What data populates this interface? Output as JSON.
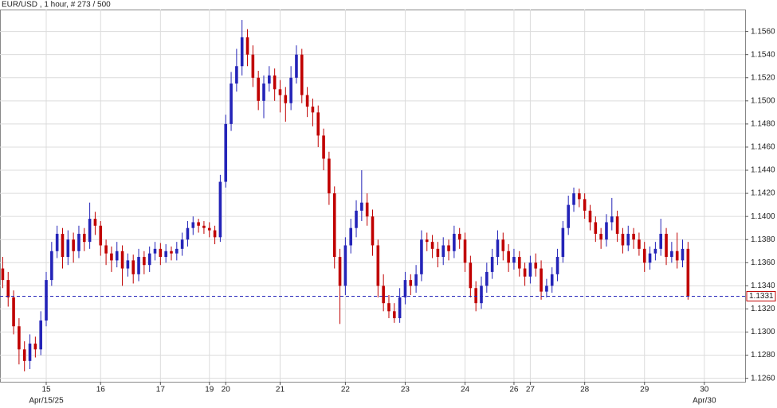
{
  "chart_data": {
    "type": "candlestick",
    "title": "EUR/USD , 1 hour, # 273 / 500",
    "categories": [
      null,
      null,
      null,
      null,
      null,
      null,
      null,
      null,
      "15",
      null,
      null,
      null,
      null,
      null,
      null,
      null,
      null,
      null,
      "16",
      null,
      null,
      null,
      null,
      null,
      null,
      null,
      null,
      null,
      null,
      "17",
      null,
      null,
      null,
      null,
      null,
      null,
      null,
      null,
      "19",
      null,
      null,
      "20",
      null,
      null,
      null,
      null,
      null,
      null,
      null,
      null,
      null,
      "21",
      null,
      null,
      null,
      null,
      null,
      null,
      null,
      null,
      null,
      null,
      null,
      "22",
      null,
      null,
      null,
      null,
      null,
      null,
      null,
      null,
      null,
      null,
      "23",
      null,
      null,
      null,
      null,
      null,
      null,
      null,
      null,
      null,
      null,
      "24",
      null,
      null,
      null,
      null,
      null,
      null,
      null,
      null,
      "26",
      null,
      null,
      "27",
      null,
      null,
      null,
      null,
      null,
      null,
      null,
      null,
      null,
      "28",
      null,
      null,
      null,
      null,
      null,
      null,
      null,
      null,
      null,
      null,
      "29",
      null,
      null,
      null,
      null,
      null,
      null,
      null,
      null,
      null,
      null,
      "30",
      null,
      null,
      null,
      null,
      null,
      null,
      null
    ],
    "categories_secondary": [
      null,
      null,
      null,
      null,
      null,
      null,
      null,
      null,
      "Apr/15/25",
      null,
      null,
      null,
      null,
      null,
      null,
      null,
      null,
      null,
      null,
      null,
      null,
      null,
      null,
      null,
      null,
      null,
      null,
      null,
      null,
      null,
      null,
      null,
      null,
      null,
      null,
      null,
      null,
      null,
      null,
      null,
      null,
      null,
      null,
      null,
      null,
      null,
      null,
      null,
      null,
      null,
      null,
      null,
      null,
      null,
      null,
      null,
      null,
      null,
      null,
      null,
      null,
      null,
      null,
      null,
      null,
      null,
      null,
      null,
      null,
      null,
      null,
      null,
      null,
      null,
      null,
      null,
      null,
      null,
      null,
      null,
      null,
      null,
      null,
      null,
      null,
      null,
      null,
      null,
      null,
      null,
      null,
      null,
      null,
      null,
      null,
      null,
      null,
      null,
      null,
      null,
      null,
      null,
      null,
      null,
      null,
      null,
      null,
      null,
      null,
      null,
      null,
      null,
      null,
      null,
      null,
      null,
      null,
      null,
      null,
      null,
      null,
      null,
      null,
      null,
      null,
      null,
      null,
      null,
      null,
      "Apr/30",
      null,
      null,
      null,
      null,
      null,
      null,
      null
    ],
    "series": [
      {
        "name": "EUR/USD",
        "up_color": "#2424b8",
        "down_color": "#c00000",
        "open": [
          1.1355,
          1.1345,
          1.133,
          1.1305,
          1.1285,
          1.1275,
          1.129,
          1.1285,
          1.131,
          1.1345,
          1.137,
          1.1385,
          1.1365,
          1.138,
          1.137,
          1.1385,
          1.1378,
          1.1398,
          1.1392,
          1.1375,
          1.1368,
          1.1362,
          1.137,
          1.1355,
          1.1362,
          1.135,
          1.1365,
          1.1358,
          1.1368,
          1.1372,
          1.1365,
          1.137,
          1.1368,
          1.1372,
          1.138,
          1.139,
          1.1395,
          1.1392,
          1.139,
          1.1388,
          1.1382,
          1.143,
          1.148,
          1.1515,
          1.153,
          1.1555,
          1.154,
          1.152,
          1.15,
          1.1515,
          1.1522,
          1.151,
          1.1505,
          1.1498,
          1.152,
          1.154,
          1.1505,
          1.1495,
          1.149,
          1.147,
          1.145,
          1.142,
          1.1365,
          1.134,
          1.1375,
          1.139,
          1.1405,
          1.1412,
          1.14,
          1.1375,
          1.134,
          1.1325,
          1.1318,
          1.1312,
          1.133,
          1.1345,
          1.134,
          1.135,
          1.138,
          1.1378,
          1.1372,
          1.1365,
          1.1375,
          1.137,
          1.1385,
          1.138,
          1.136,
          1.1338,
          1.1325,
          1.134,
          1.1352,
          1.1365,
          1.138,
          1.137,
          1.136,
          1.1365,
          1.1355,
          1.1348,
          1.136,
          1.1355,
          1.1335,
          1.134,
          1.135,
          1.1365,
          1.139,
          1.141,
          1.142,
          1.1415,
          1.1405,
          1.1395,
          1.1385,
          1.138,
          1.1395,
          1.14,
          1.1385,
          1.1375,
          1.1385,
          1.138,
          1.1372,
          1.136,
          1.1368,
          1.1372,
          1.1385,
          1.1365,
          1.137,
          1.1362,
          1.1372,
          null,
          null,
          null,
          null,
          null,
          null,
          null,
          null,
          null,
          null
        ],
        "high": [
          1.1365,
          1.1352,
          1.1336,
          1.1312,
          1.1292,
          1.1298,
          1.1296,
          1.1318,
          1.1352,
          1.1378,
          1.1392,
          1.139,
          1.1388,
          1.1386,
          1.1392,
          1.139,
          1.1412,
          1.1404,
          1.1396,
          1.138,
          1.1374,
          1.1378,
          1.1375,
          1.1368,
          1.1367,
          1.1372,
          1.137,
          1.1374,
          1.1378,
          1.1377,
          1.1376,
          1.1374,
          1.1378,
          1.1386,
          1.1396,
          1.14,
          1.1398,
          1.1396,
          1.1395,
          1.1392,
          1.1436,
          1.1488,
          1.1525,
          1.1545,
          1.157,
          1.1562,
          1.1548,
          1.1526,
          1.1522,
          1.153,
          1.1528,
          1.1518,
          1.1512,
          1.153,
          1.1548,
          1.1545,
          1.1512,
          1.1502,
          1.1496,
          1.1476,
          1.1456,
          1.1426,
          1.1372,
          1.1382,
          1.1398,
          1.1414,
          1.144,
          1.142,
          1.1406,
          1.138,
          1.135,
          1.1332,
          1.1325,
          1.1338,
          1.1352,
          1.135,
          1.1358,
          1.1388,
          1.1386,
          1.1384,
          1.1378,
          1.1382,
          1.138,
          1.1392,
          1.139,
          1.1386,
          1.1366,
          1.1344,
          1.1348,
          1.136,
          1.1372,
          1.1388,
          1.1386,
          1.1376,
          1.1372,
          1.137,
          1.136,
          1.1366,
          1.1368,
          1.1362,
          1.1346,
          1.1356,
          1.1372,
          1.1396,
          1.1418,
          1.1425,
          1.1424,
          1.142,
          1.141,
          1.14,
          1.139,
          1.1402,
          1.1416,
          1.1405,
          1.139,
          1.1392,
          1.139,
          1.1386,
          1.1378,
          1.1374,
          1.1378,
          1.1398,
          1.139,
          1.1378,
          1.1386,
          1.138,
          1.1378,
          null,
          null,
          null,
          null,
          null,
          null,
          null,
          null,
          null,
          null
        ],
        "low": [
          1.1338,
          1.1322,
          1.1298,
          1.1272,
          1.1266,
          1.1268,
          1.1278,
          1.128,
          1.1305,
          1.134,
          1.1364,
          1.1355,
          1.1358,
          1.136,
          1.1364,
          1.137,
          1.1372,
          1.1384,
          1.1366,
          1.1358,
          1.1352,
          1.1356,
          1.134,
          1.1348,
          1.1342,
          1.1344,
          1.135,
          1.1352,
          1.1362,
          1.1358,
          1.136,
          1.1362,
          1.1362,
          1.1366,
          1.1374,
          1.1384,
          1.1386,
          1.1385,
          1.1382,
          1.1376,
          1.1378,
          1.1425,
          1.1474,
          1.1508,
          1.1522,
          1.153,
          1.1512,
          1.1492,
          1.1485,
          1.1508,
          1.15,
          1.149,
          1.1482,
          1.1492,
          1.1515,
          1.1498,
          1.1486,
          1.1478,
          1.146,
          1.144,
          1.141,
          1.1355,
          1.1307,
          1.1332,
          1.1368,
          1.1382,
          1.1396,
          1.1392,
          1.1366,
          1.133,
          1.1318,
          1.1312,
          1.1308,
          1.1308,
          1.1324,
          1.1332,
          1.1334,
          1.1344,
          1.137,
          1.1364,
          1.1356,
          1.1358,
          1.1362,
          1.1364,
          1.1372,
          1.1352,
          1.133,
          1.1318,
          1.132,
          1.1334,
          1.1346,
          1.1358,
          1.1362,
          1.1352,
          1.1354,
          1.1348,
          1.134,
          1.1342,
          1.1348,
          1.1328,
          1.133,
          1.1334,
          1.1344,
          1.136,
          1.1384,
          1.1404,
          1.1408,
          1.1398,
          1.1388,
          1.1378,
          1.1372,
          1.1374,
          1.1388,
          1.1378,
          1.1368,
          1.137,
          1.1372,
          1.1366,
          1.1352,
          1.1354,
          1.1362,
          1.1366,
          1.1358,
          1.136,
          1.1355,
          1.1356,
          1.1328,
          null,
          null,
          null,
          null,
          null,
          null,
          null,
          null,
          null,
          null
        ],
        "close": [
          1.1345,
          1.133,
          1.1305,
          1.1285,
          1.1275,
          1.129,
          1.1285,
          1.131,
          1.1345,
          1.137,
          1.1385,
          1.1365,
          1.138,
          1.137,
          1.1385,
          1.1378,
          1.1398,
          1.1392,
          1.1375,
          1.1368,
          1.1362,
          1.137,
          1.1355,
          1.1362,
          1.135,
          1.1365,
          1.1358,
          1.1368,
          1.1372,
          1.1365,
          1.137,
          1.1368,
          1.1372,
          1.138,
          1.139,
          1.1395,
          1.1392,
          1.139,
          1.1388,
          1.1382,
          1.143,
          1.148,
          1.1515,
          1.153,
          1.1555,
          1.154,
          1.152,
          1.15,
          1.1515,
          1.1522,
          1.151,
          1.1505,
          1.1498,
          1.152,
          1.154,
          1.1505,
          1.1495,
          1.149,
          1.147,
          1.145,
          1.142,
          1.1365,
          1.134,
          1.1375,
          1.139,
          1.1405,
          1.1412,
          1.14,
          1.1375,
          1.134,
          1.1325,
          1.1318,
          1.1312,
          1.133,
          1.1345,
          1.134,
          1.135,
          1.138,
          1.1378,
          1.1372,
          1.1365,
          1.1375,
          1.137,
          1.1385,
          1.138,
          1.136,
          1.1338,
          1.1325,
          1.134,
          1.1352,
          1.1365,
          1.138,
          1.137,
          1.136,
          1.1365,
          1.1355,
          1.1348,
          1.136,
          1.1355,
          1.1335,
          1.134,
          1.135,
          1.1365,
          1.139,
          1.141,
          1.142,
          1.1415,
          1.1405,
          1.1395,
          1.1385,
          1.138,
          1.1395,
          1.14,
          1.1385,
          1.1375,
          1.1385,
          1.138,
          1.1372,
          1.136,
          1.1368,
          1.1372,
          1.1385,
          1.1365,
          1.137,
          1.1362,
          1.1372,
          1.1331,
          null,
          null,
          null,
          null,
          null,
          null,
          null,
          null,
          null,
          null
        ]
      }
    ],
    "last_price": 1.1331,
    "last_price_color": "#c00000",
    "last_line_color": "#2424b8",
    "ylim": [
      1.1257,
      1.1579
    ],
    "yticks": [
      {
        "value": 1.126,
        "label": "1.1260"
      },
      {
        "value": 1.128,
        "label": "1.1280"
      },
      {
        "value": 1.13,
        "label": "1.1300"
      },
      {
        "value": 1.132,
        "label": "1.1320"
      },
      {
        "value": 1.134,
        "label": "1.1340"
      },
      {
        "value": 1.136,
        "label": "1.1360"
      },
      {
        "value": 1.138,
        "label": "1.1380"
      },
      {
        "value": 1.14,
        "label": "1.1400"
      },
      {
        "value": 1.142,
        "label": "1.1420"
      },
      {
        "value": 1.144,
        "label": "1.1440"
      },
      {
        "value": 1.146,
        "label": "1.1460"
      },
      {
        "value": 1.148,
        "label": "1.1480"
      },
      {
        "value": 1.15,
        "label": "1.1500"
      },
      {
        "value": 1.152,
        "label": "1.1520"
      },
      {
        "value": 1.154,
        "label": "1.1540"
      },
      {
        "value": 1.156,
        "label": "1.1560"
      }
    ],
    "grid": true
  }
}
